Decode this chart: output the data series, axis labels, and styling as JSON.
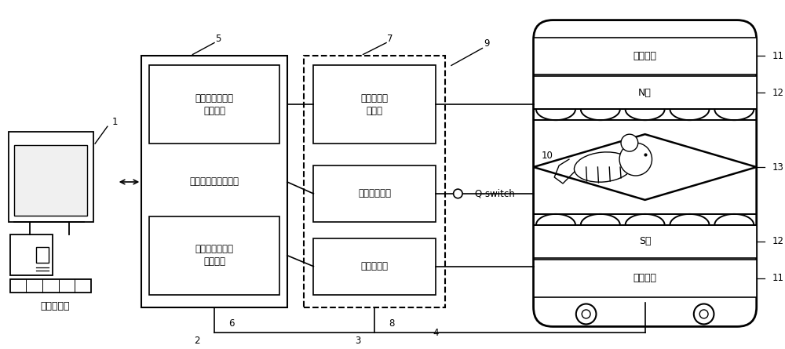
{
  "bg_color": "#ffffff",
  "line_color": "#000000",
  "computer_label": "计算机控制",
  "label1": "1",
  "label2": "2",
  "label3": "3",
  "label4": "4",
  "label5": "5",
  "label6": "6",
  "label7": "7",
  "label8": "8",
  "label9": "9",
  "label10": "10",
  "label11": "11",
  "label12": "12",
  "label13": "13",
  "box_top_text": "频率合成及激励\n信号发射",
  "box_mid_text": "单板核磁共振控制器",
  "box_bot_text": "数字检波及数字\n信号处理",
  "rf_top_text": "低噪声前置\n放大器",
  "rf_mid_text": "射频开关控制",
  "rf_bot_text": "射频放大器",
  "mag_top_top_text": "温控装置",
  "mag_top_mid_text": "N极",
  "mag_bot_mid_text": "S极",
  "mag_bot_bot_text": "温控装置",
  "qswitch_text": "Q-switch"
}
